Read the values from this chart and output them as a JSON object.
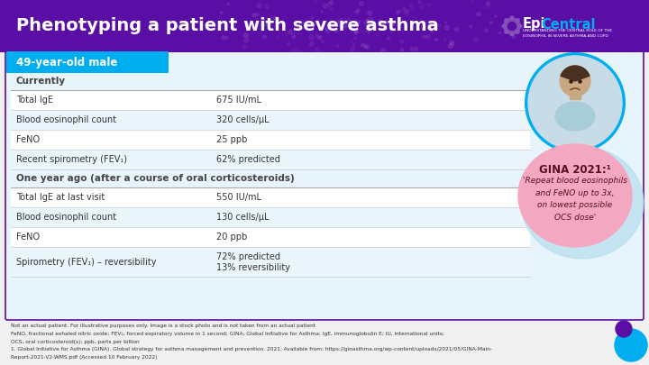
{
  "title": "Phenotyping a patient with severe asthma",
  "header_bg": "#5B0EA6",
  "header_text_color": "#FFFFFF",
  "patient_label": "49-year-old male",
  "patient_label_bg": "#00AEEF",
  "content_bg": "#E8F4FB",
  "section1_header": "Currently",
  "section1_rows": [
    [
      "Total IgE",
      "675 IU/mL"
    ],
    [
      "Blood eosinophil count",
      "320 cells/μL"
    ],
    [
      "FeNO",
      "25 ppb"
    ],
    [
      "Recent spirometry (FEV₁)",
      "62% predicted"
    ]
  ],
  "section2_header": "One year ago (after a course of oral corticosteroids)",
  "section2_rows": [
    [
      "Total IgE at last visit",
      "550 IU/mL"
    ],
    [
      "Blood eosinophil count",
      "130 cells/μL"
    ],
    [
      "FeNO",
      "20 ppb"
    ],
    [
      "Spirometry (FEV₁) – reversibility",
      "72% predicted\n13% reversibility"
    ]
  ],
  "gina_bubble_bg": "#F4A7C0",
  "gina_bubble_shadow": "#B8DFF0",
  "gina_title": "GINA 2021:¹",
  "gina_text": "'Repeat blood eosinophils\nand FeNO up to 3x,\non lowest possible\nOCS dose'",
  "footnote_lines": [
    "Not an actual patient. For illustrative purposes only. Image is a stock photo and is not taken from an actual patient",
    "FeNO, fractional exhaled nitric oxide; FEV₁, forced expiratory volume in 1 second; GINA, Global Initiative for Asthma; IgE, immunoglobulin E; IU, international units;",
    "OCS, oral corticosteroid(s); ppb, parts per billion",
    "1. Global Initiative for Asthma (GINA). Global strategy for asthma management and prevention. 2021. Available from: https://ginasthma.org/wp-content/uploads/2021/05/GINA-Main-",
    "Report-2021-V2-WMS.pdf (Accessed 10 February 2022)"
  ],
  "footnote_bg": "#F0F0F0",
  "border_color": "#5B0EA6",
  "row_alt1": "#FFFFFF",
  "row_alt2": "#EAF4FB",
  "text_color": "#333333",
  "photo_circle_color": "#00AEEF",
  "cyan_dot_color": "#00AEEF",
  "purple_dot_color": "#5B0EA6"
}
